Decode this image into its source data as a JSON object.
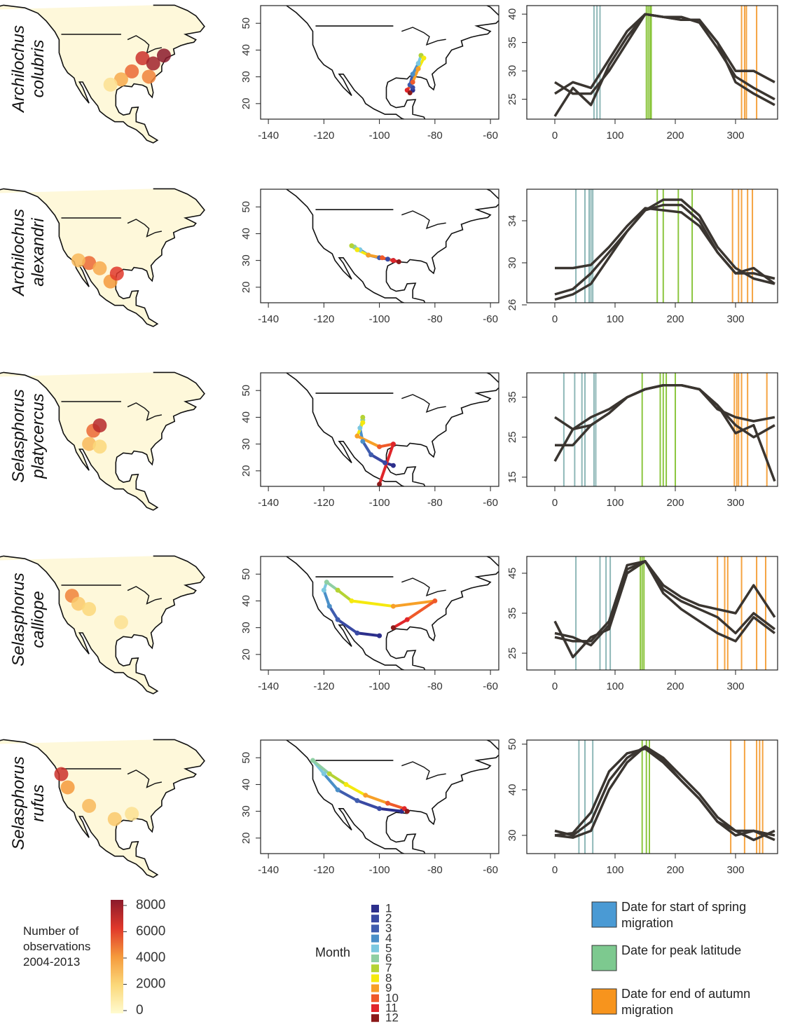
{
  "chart_data": [
    {
      "type": "heatmap",
      "title": "Archilochus colubris",
      "x": [
        -85,
        -80,
        -75,
        -90,
        -95,
        -100,
        -82
      ],
      "y": [
        40,
        38,
        41,
        35,
        32,
        30,
        33
      ],
      "values": [
        6500,
        7500,
        8000,
        5000,
        3500,
        1500,
        4500
      ]
    },
    {
      "type": "track",
      "x": [
        -88,
        -88,
        -89,
        -88,
        -86,
        -85,
        -85,
        -84,
        -86,
        -88,
        -90,
        -89
      ],
      "y": [
        25,
        26,
        27,
        31,
        35,
        38,
        38,
        37,
        33,
        28,
        25,
        24
      ],
      "xlim": [
        -142.8,
        -57
      ],
      "ylim": [
        14.2,
        56.6
      ],
      "xticks": [
        -140,
        -120,
        -100,
        -80,
        -60
      ],
      "yticks": [
        20,
        30,
        40,
        50
      ]
    },
    {
      "type": "line",
      "color": "#3a3530",
      "x": [
        0,
        30,
        60,
        90,
        120,
        150,
        180,
        210,
        240,
        270,
        300,
        330,
        365
      ],
      "series": [
        {
          "values": [
            22,
            27,
            24,
            31,
            36,
            40,
            39.5,
            39,
            39,
            35,
            28,
            26,
            24
          ]
        },
        {
          "values": [
            26,
            28,
            27,
            32,
            37,
            40,
            39.5,
            39,
            39,
            35,
            30,
            30,
            28
          ]
        },
        {
          "values": [
            28,
            26,
            26,
            30,
            35,
            40,
            39.5,
            39.5,
            38.5,
            34,
            29,
            27,
            25
          ]
        }
      ],
      "spring": [
        65,
        70,
        75
      ],
      "peak": [
        152,
        155,
        158,
        160
      ],
      "autumn": [
        310,
        315,
        318,
        335
      ],
      "xlim": [
        -46.5,
        369.8
      ],
      "ylim": [
        21.5,
        41.5
      ],
      "xticks": [
        0,
        100,
        200,
        300
      ],
      "yticks": [
        25,
        30,
        35,
        40
      ]
    },
    {
      "type": "heatmap",
      "title": "Archilochus alexandri",
      "x": [
        -110,
        -105,
        -100,
        -115,
        -97
      ],
      "y": [
        32,
        30,
        25,
        33,
        28
      ],
      "values": [
        5000,
        3500,
        4000,
        3000,
        6000
      ]
    },
    {
      "type": "track",
      "x": [
        -95,
        -97,
        -100,
        -104,
        -107,
        -109,
        -110,
        -108,
        -104,
        -99,
        -95,
        -93
      ],
      "y": [
        30,
        30.5,
        31,
        32,
        34,
        35,
        35.5,
        34,
        32,
        31,
        30,
        29.5
      ],
      "xlim": [
        -142.8,
        -57
      ],
      "ylim": [
        14.2,
        56.6
      ],
      "xticks": [
        -140,
        -120,
        -100,
        -80,
        -60
      ],
      "yticks": [
        20,
        30,
        40,
        50
      ]
    },
    {
      "type": "line",
      "color": "#3a3530",
      "x": [
        0,
        30,
        60,
        90,
        120,
        150,
        180,
        210,
        240,
        270,
        300,
        330,
        365
      ],
      "series": [
        {
          "values": [
            27,
            27.5,
            29,
            31,
            33,
            35,
            35.5,
            35.5,
            34,
            31,
            29,
            29,
            28.5
          ]
        },
        {
          "values": [
            29.5,
            29.5,
            29.8,
            31.5,
            33.5,
            35.2,
            35,
            34.8,
            33.5,
            31,
            29,
            29.5,
            28
          ]
        },
        {
          "values": [
            26.5,
            27,
            28,
            30.5,
            33,
            35,
            36,
            36,
            34.5,
            31.5,
            29.5,
            28.5,
            28
          ]
        }
      ],
      "spring": [
        35,
        50,
        57,
        60,
        63
      ],
      "peak": [
        170,
        180,
        205,
        228
      ],
      "autumn": [
        295,
        305,
        310,
        320,
        328
      ],
      "xlim": [
        -46.5,
        369.8
      ],
      "ylim": [
        26.2,
        37
      ],
      "xticks": [
        0,
        100,
        200,
        300
      ],
      "yticks": [
        26,
        30,
        34
      ]
    },
    {
      "type": "heatmap",
      "title": "Selasphorus platycercus",
      "x": [
        -108,
        -105,
        -110,
        -105
      ],
      "y": [
        38,
        40,
        33,
        32
      ],
      "values": [
        5000,
        7000,
        3000,
        2000
      ]
    },
    {
      "type": "track",
      "x": [
        -95,
        -98,
        -103,
        -106,
        -107,
        -106,
        -106,
        -106,
        -108,
        -100,
        -95,
        -100
      ],
      "y": [
        22,
        23,
        26,
        31,
        36,
        39,
        40,
        38,
        33,
        29,
        30,
        15
      ],
      "xlim": [
        -142.8,
        -57
      ],
      "ylim": [
        14.2,
        56.6
      ],
      "xticks": [
        -140,
        -120,
        -100,
        -80,
        -60
      ],
      "yticks": [
        20,
        30,
        40,
        50
      ]
    },
    {
      "type": "line",
      "color": "#3a3530",
      "x": [
        0,
        30,
        60,
        90,
        120,
        150,
        180,
        210,
        240,
        270,
        300,
        330,
        365
      ],
      "series": [
        {
          "values": [
            19,
            27,
            28,
            31,
            35,
            37,
            38,
            38,
            37,
            33,
            26,
            28,
            14
          ]
        },
        {
          "values": [
            30,
            27,
            30,
            32,
            35,
            37,
            38,
            38,
            37,
            33,
            28,
            25,
            28
          ]
        },
        {
          "values": [
            23,
            23,
            28,
            31,
            35,
            37,
            38,
            38,
            37,
            32,
            30,
            29,
            30
          ]
        }
      ],
      "spring": [
        15,
        33,
        45,
        50,
        65,
        68
      ],
      "peak": [
        145,
        175,
        180,
        185,
        200
      ],
      "autumn": [
        298,
        302,
        305,
        310,
        320,
        352
      ],
      "xlim": [
        -46.5,
        369.8
      ],
      "ylim": [
        12.7,
        41.1
      ],
      "xticks": [
        0,
        100,
        200,
        300
      ],
      "yticks": [
        15,
        25,
        35
      ]
    },
    {
      "type": "heatmap",
      "title": "Selasphorus calliope",
      "x": [
        -118,
        -115,
        -110,
        -95
      ],
      "y": [
        45,
        42,
        40,
        35
      ],
      "values": [
        4500,
        2500,
        2000,
        1500
      ]
    },
    {
      "type": "track",
      "x": [
        -100,
        -108,
        -115,
        -118,
        -120,
        -119,
        -115,
        -110,
        -95,
        -80,
        -90,
        -95
      ],
      "y": [
        27,
        28,
        33,
        38,
        44,
        47,
        44,
        40,
        38,
        40,
        33,
        30
      ],
      "xlim": [
        -142.8,
        -57
      ],
      "ylim": [
        14.2,
        56.6
      ],
      "xticks": [
        -140,
        -120,
        -100,
        -80,
        -60
      ],
      "yticks": [
        20,
        30,
        40,
        50
      ]
    },
    {
      "type": "line",
      "color": "#3a3530",
      "x": [
        0,
        30,
        60,
        90,
        120,
        150,
        180,
        210,
        240,
        270,
        300,
        330,
        365
      ],
      "series": [
        {
          "values": [
            33,
            24,
            29,
            31,
            45,
            48,
            40,
            36,
            33,
            30,
            28,
            34,
            30
          ]
        },
        {
          "values": [
            30,
            29,
            27,
            32,
            46,
            48,
            41,
            38,
            36,
            34,
            30,
            35,
            31
          ]
        },
        {
          "values": [
            29,
            28,
            28,
            33,
            47,
            48,
            42,
            39,
            37,
            36,
            35,
            42,
            34
          ]
        }
      ],
      "spring": [
        35,
        75,
        85,
        92
      ],
      "peak": [
        142,
        145,
        148
      ],
      "autumn": [
        270,
        282,
        287,
        310,
        335,
        350
      ],
      "xlim": [
        -46.5,
        369.8
      ],
      "ylim": [
        20.8,
        49.2
      ],
      "xticks": [
        0,
        100,
        200,
        300
      ],
      "yticks": [
        25,
        35,
        45
      ]
    },
    {
      "type": "heatmap",
      "title": "Selasphorus rufus",
      "x": [
        -123,
        -120,
        -110,
        -98,
        -90
      ],
      "y": [
        47,
        42,
        35,
        30,
        32
      ],
      "values": [
        6500,
        4000,
        3000,
        2500,
        1500
      ]
    },
    {
      "type": "track",
      "x": [
        -92,
        -100,
        -108,
        -115,
        -120,
        -124,
        -118,
        -112,
        -105,
        -97,
        -91,
        -90
      ],
      "y": [
        30,
        31,
        34,
        38,
        44,
        49,
        44,
        40,
        36,
        33,
        31,
        30
      ],
      "xlim": [
        -142.8,
        -57
      ],
      "ylim": [
        14.2,
        56.6
      ],
      "xticks": [
        -140,
        -120,
        -100,
        -80,
        -60
      ],
      "yticks": [
        20,
        30,
        40,
        50
      ]
    },
    {
      "type": "line",
      "color": "#3a3530",
      "x": [
        0,
        30,
        60,
        90,
        120,
        150,
        180,
        210,
        240,
        270,
        300,
        330,
        365
      ],
      "series": [
        {
          "values": [
            30,
            30.5,
            35,
            44,
            48,
            49,
            46,
            42,
            38,
            33,
            31,
            29,
            31
          ]
        },
        {
          "values": [
            31,
            30,
            33,
            42,
            47,
            49.5,
            47,
            43,
            39,
            34,
            31,
            31,
            30
          ]
        },
        {
          "values": [
            30,
            29.5,
            31,
            40,
            46,
            49.5,
            46.5,
            42,
            38,
            33,
            30,
            31,
            29
          ]
        }
      ],
      "spring": [
        40,
        50,
        63
      ],
      "peak": [
        145,
        152,
        157
      ],
      "autumn": [
        292,
        315,
        335,
        340,
        345
      ],
      "xlim": [
        -46.5,
        369.8
      ],
      "ylim": [
        26,
        50.9
      ],
      "xticks": [
        0,
        100,
        200,
        300
      ],
      "yticks": [
        30,
        40,
        50
      ]
    }
  ],
  "colorbar": {
    "label": "Number of observations 2004-2013",
    "lim": [
      0,
      8000
    ],
    "ticks": [
      0,
      2000,
      4000,
      6000,
      8000
    ],
    "colors": [
      "#fffbd0",
      "#fbd87a",
      "#f59a3c",
      "#e0382b",
      "#8b1a2b"
    ]
  },
  "month_legend": {
    "title": "Month",
    "labels": [
      1,
      2,
      3,
      4,
      5,
      6,
      7,
      8,
      9,
      10,
      11,
      12
    ],
    "colors": [
      "#2c2f8c",
      "#3949a3",
      "#3f5cae",
      "#4a8fc8",
      "#7cc8e0",
      "#8fcfa3",
      "#b5d334",
      "#f5e90f",
      "#f7a028",
      "#ef5a2a",
      "#e0262a",
      "#8c1a1a"
    ]
  },
  "date_legend": [
    {
      "key": "spring",
      "label": "Date for start of spring migration",
      "color": "#4a9ad4",
      "line_color": "#8fb8b8"
    },
    {
      "key": "peak",
      "label": "Date for peak latitude",
      "color": "#7dc98f",
      "line_color": "#8cc63f"
    },
    {
      "key": "autumn",
      "label": "Date for end of autumn migration",
      "color": "#f7941d",
      "line_color": "#f5a442"
    }
  ]
}
